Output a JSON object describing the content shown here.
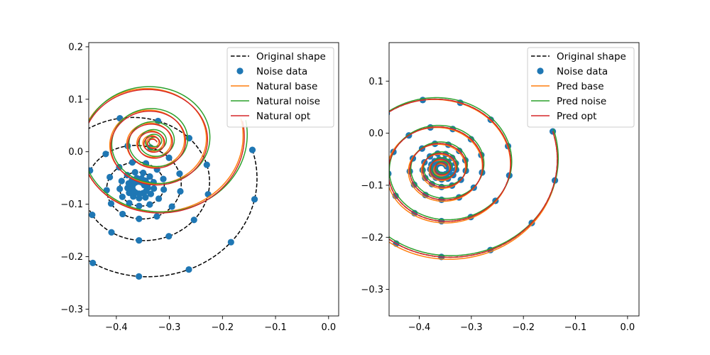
{
  "chart_data": [
    {
      "type": "line",
      "title": "",
      "xlabel": "",
      "ylabel": "",
      "xlim": [
        -0.452,
        0.019
      ],
      "ylim": [
        -0.313,
        0.208
      ],
      "xticks": [
        -0.4,
        -0.3,
        -0.2,
        -0.1,
        0.0
      ],
      "xtick_labels": [
        "−0.4",
        "−0.3",
        "−0.2",
        "−0.1",
        "0.0"
      ],
      "yticks": [
        -0.3,
        -0.2,
        -0.1,
        0.0,
        0.1,
        0.2
      ],
      "ytick_labels": [
        "−0.3",
        "−0.2",
        "−0.1",
        "0.0",
        "0.1",
        "0.2"
      ],
      "legend": {
        "position": "upper right",
        "entries": [
          "Original shape",
          "Noise data",
          "Natural base",
          "Natural noise",
          "Natural opt"
        ]
      },
      "spiral": {
        "a0": 0.2,
        "b": 0.082,
        "phi_max": 37.7
      },
      "series": [
        {
          "name": "Original shape",
          "kind": "line",
          "style": "dashed",
          "color": "#000000",
          "cx": -0.357,
          "cy": -0.067,
          "scale": 1.0,
          "rot": 0.0
        },
        {
          "name": "Noise data",
          "kind": "scatter",
          "color": "#1f77b4",
          "cx": -0.357,
          "cy": -0.067,
          "scale": 1.0,
          "rot": 0.0,
          "points": 78
        },
        {
          "name": "Natural base",
          "kind": "line",
          "color": "#ff7f0e",
          "cx": -0.333,
          "cy": 0.018,
          "scale": 0.77,
          "rot": 0.06
        },
        {
          "name": "Natural noise",
          "kind": "line",
          "color": "#2ca02c",
          "cx": -0.328,
          "cy": 0.02,
          "scale": 0.78,
          "rot": 0.1
        },
        {
          "name": "Natural opt",
          "kind": "line",
          "color": "#d62728",
          "cx": -0.331,
          "cy": 0.016,
          "scale": 0.77,
          "rot": 0.08
        }
      ]
    },
    {
      "type": "line",
      "title": "",
      "xlabel": "",
      "ylabel": "",
      "xlim": [
        -0.458,
        0.022
      ],
      "ylim": [
        -0.351,
        0.174
      ],
      "xticks": [
        -0.4,
        -0.3,
        -0.2,
        -0.1,
        0.0
      ],
      "xtick_labels": [
        "−0.4",
        "−0.3",
        "−0.2",
        "−0.1",
        "0.0"
      ],
      "yticks": [
        -0.3,
        -0.2,
        -0.1,
        0.0,
        0.1
      ],
      "ytick_labels": [
        "−0.3",
        "−0.2",
        "−0.1",
        "0.0",
        "0.1"
      ],
      "legend": {
        "position": "upper right",
        "entries": [
          "Original shape",
          "Noise data",
          "Pred base",
          "Pred noise",
          "Pred opt"
        ]
      },
      "spiral": {
        "a0": 0.2,
        "b": 0.082,
        "phi_max": 37.7
      },
      "series": [
        {
          "name": "Original shape",
          "kind": "line",
          "style": "dashed",
          "color": "#000000",
          "cx": -0.357,
          "cy": -0.067,
          "scale": 1.0,
          "rot": 0.0
        },
        {
          "name": "Noise data",
          "kind": "scatter",
          "color": "#1f77b4",
          "cx": -0.357,
          "cy": -0.067,
          "scale": 1.0,
          "rot": 0.0,
          "points": 78
        },
        {
          "name": "Pred base",
          "kind": "line",
          "color": "#ff7f0e",
          "cx": -0.359,
          "cy": -0.069,
          "scale": 1.01,
          "rot": 0.01
        },
        {
          "name": "Pred noise",
          "kind": "line",
          "color": "#2ca02c",
          "cx": -0.355,
          "cy": -0.064,
          "scale": 1.0,
          "rot": -0.01
        },
        {
          "name": "Pred opt",
          "kind": "line",
          "color": "#d62728",
          "cx": -0.357,
          "cy": -0.067,
          "scale": 1.0,
          "rot": 0.0
        }
      ]
    }
  ]
}
